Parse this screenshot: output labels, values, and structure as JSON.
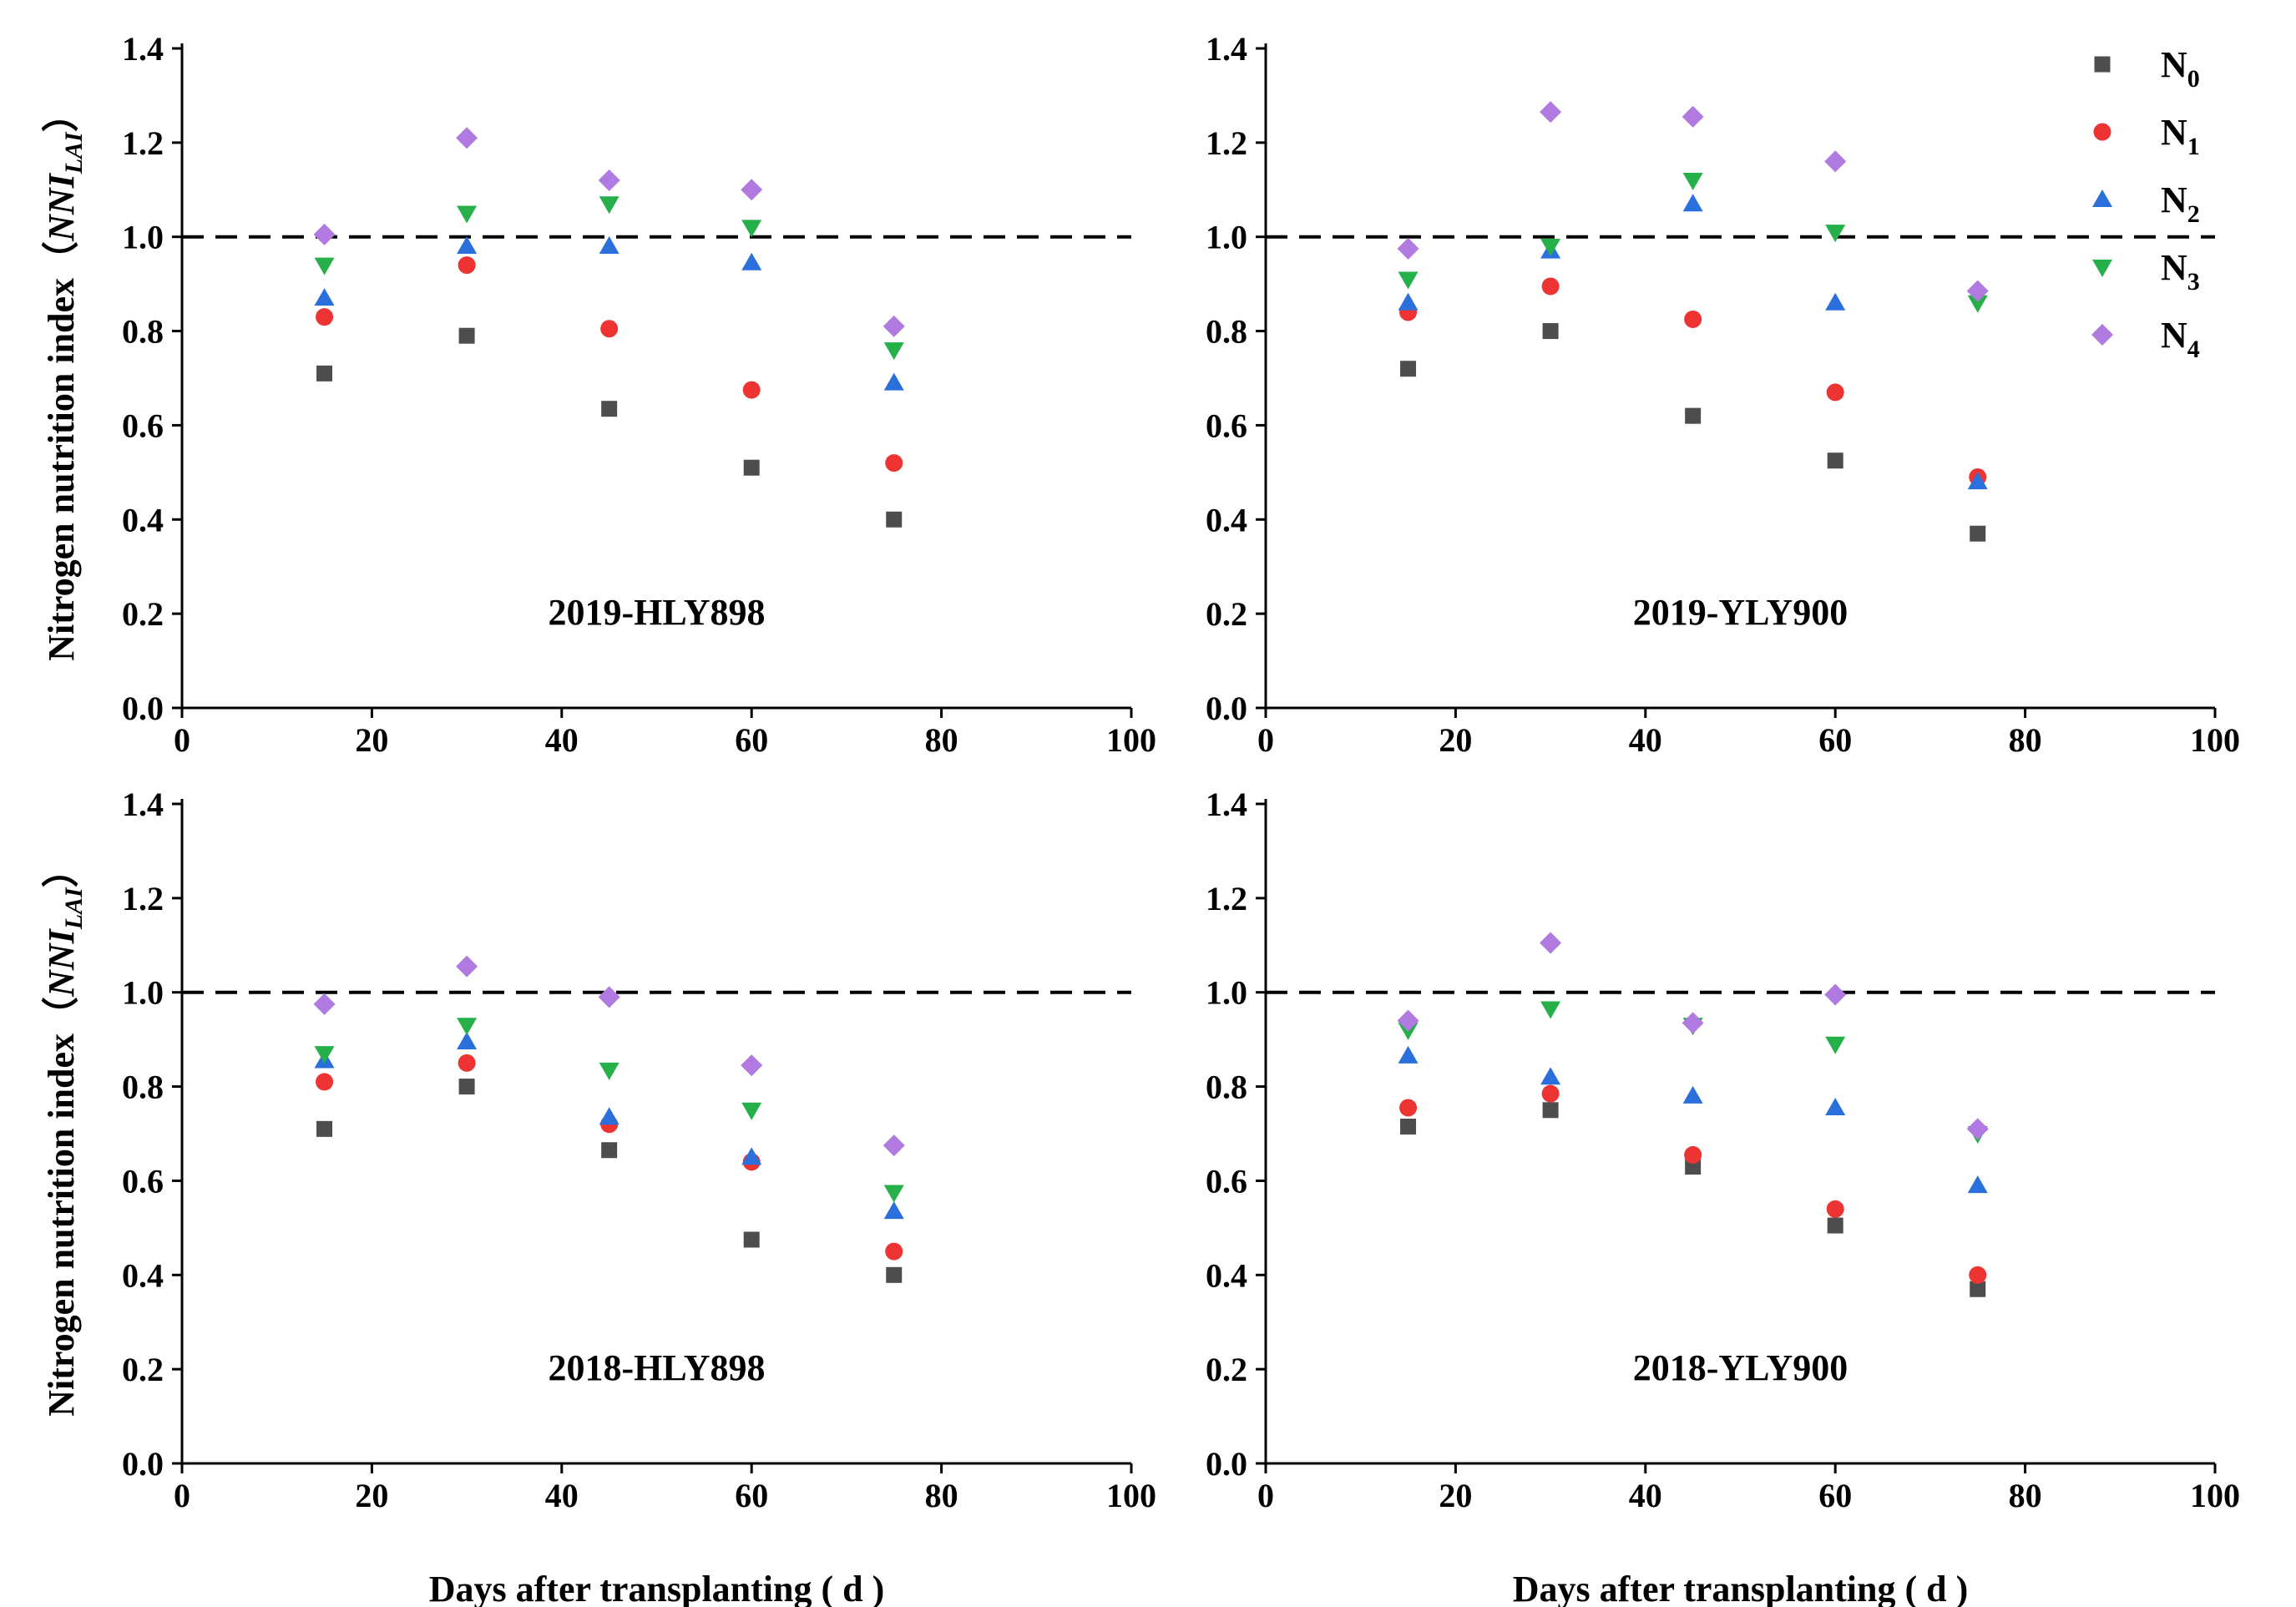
{
  "chart_data": {
    "type": "scatter",
    "xlabel": "Days after transplanting ( d )",
    "ylabel": "Nitrogen nutrition index",
    "ylabel_paren_open": "（",
    "ylabel_italic": "NNI",
    "ylabel_subscript": "LAI",
    "ylabel_paren_close": "）",
    "xlim": [
      0,
      100
    ],
    "ylim": [
      0,
      1.4
    ],
    "x_ticks": [
      "0",
      "20",
      "40",
      "60",
      "80",
      "100"
    ],
    "y_ticks": [
      "0.0",
      "0.2",
      "0.4",
      "0.6",
      "0.8",
      "1.0",
      "1.2",
      "1.4"
    ],
    "reference_line": 1.0,
    "legend": [
      {
        "base": "N",
        "sub": "0",
        "marker": "square",
        "color": "#4d4d4d"
      },
      {
        "base": "N",
        "sub": "1",
        "marker": "circle",
        "color": "#ee3333"
      },
      {
        "base": "N",
        "sub": "2",
        "marker": "triangle-up",
        "color": "#2a6fdb"
      },
      {
        "base": "N",
        "sub": "3",
        "marker": "triangle-down",
        "color": "#25b04a"
      },
      {
        "base": "N",
        "sub": "4",
        "marker": "diamond",
        "color": "#b07ae0"
      }
    ],
    "x": [
      15,
      30,
      45,
      60,
      75
    ],
    "panels": [
      {
        "title": "2019-HLY898",
        "series": [
          {
            "name": "N0",
            "values": [
              0.71,
              0.79,
              0.635,
              0.51,
              0.4
            ]
          },
          {
            "name": "N1",
            "values": [
              0.83,
              0.94,
              0.805,
              0.675,
              0.52
            ]
          },
          {
            "name": "N2",
            "values": [
              0.87,
              0.98,
              0.98,
              0.945,
              0.69
            ]
          },
          {
            "name": "N3",
            "values": [
              0.94,
              1.05,
              1.07,
              1.02,
              0.76
            ]
          },
          {
            "name": "N4",
            "values": [
              1.005,
              1.21,
              1.12,
              1.1,
              0.81
            ]
          }
        ]
      },
      {
        "title": "2019-YLY900",
        "series": [
          {
            "name": "N0",
            "values": [
              0.72,
              0.8,
              0.62,
              0.525,
              0.37
            ]
          },
          {
            "name": "N1",
            "values": [
              0.84,
              0.895,
              0.825,
              0.67,
              0.49
            ]
          },
          {
            "name": "N2",
            "values": [
              0.86,
              0.97,
              1.07,
              0.86,
              0.48
            ]
          },
          {
            "name": "N3",
            "values": [
              0.91,
              0.98,
              1.12,
              1.01,
              0.86
            ]
          },
          {
            "name": "N4",
            "values": [
              0.975,
              1.265,
              1.255,
              1.16,
              0.885
            ]
          }
        ]
      },
      {
        "title": "2018-HLY898",
        "series": [
          {
            "name": "N0",
            "values": [
              0.71,
              0.8,
              0.665,
              0.475,
              0.4
            ]
          },
          {
            "name": "N1",
            "values": [
              0.81,
              0.85,
              0.72,
              0.64,
              0.45
            ]
          },
          {
            "name": "N2",
            "values": [
              0.855,
              0.895,
              0.735,
              0.65,
              0.535
            ]
          },
          {
            "name": "N3",
            "values": [
              0.87,
              0.93,
              0.835,
              0.75,
              0.575
            ]
          },
          {
            "name": "N4",
            "values": [
              0.975,
              1.055,
              0.99,
              0.845,
              0.675
            ]
          }
        ]
      },
      {
        "title": "2018-YLY900",
        "series": [
          {
            "name": "N0",
            "values": [
              0.715,
              0.75,
              0.63,
              0.505,
              0.37
            ]
          },
          {
            "name": "N1",
            "values": [
              0.755,
              0.785,
              0.655,
              0.54,
              0.4
            ]
          },
          {
            "name": "N2",
            "values": [
              0.865,
              0.82,
              0.78,
              0.755,
              0.59
            ]
          },
          {
            "name": "N3",
            "values": [
              0.92,
              0.965,
              0.93,
              0.89,
              0.7
            ]
          },
          {
            "name": "N4",
            "values": [
              0.94,
              1.105,
              0.935,
              0.995,
              0.71
            ]
          }
        ]
      }
    ]
  }
}
